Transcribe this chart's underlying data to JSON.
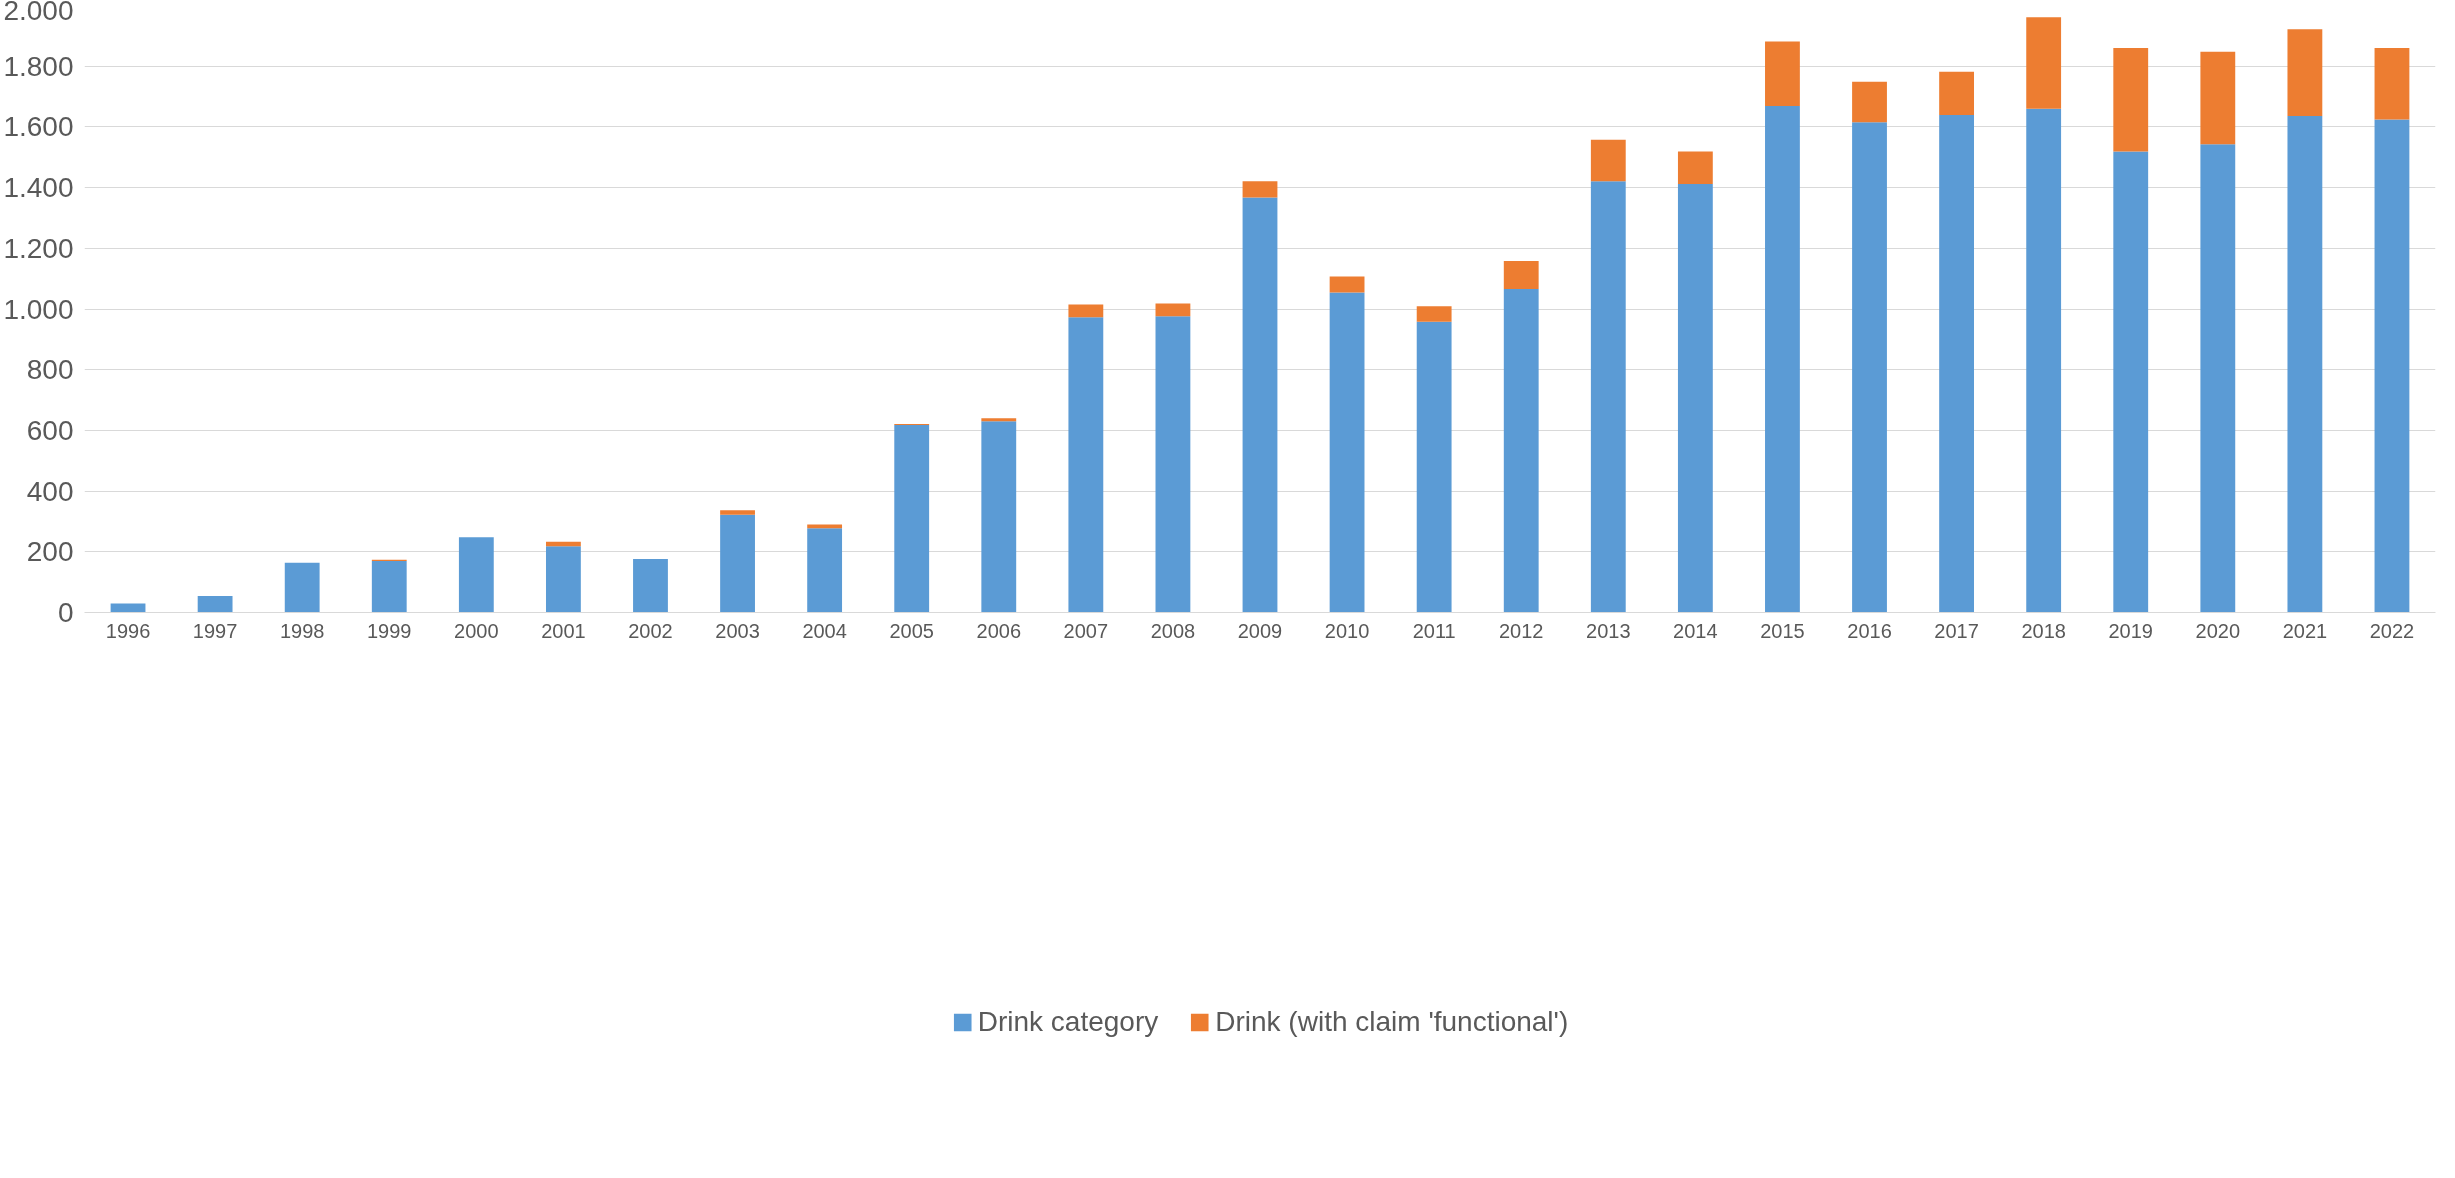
{
  "chart_data": {
    "type": "bar",
    "stacked": true,
    "categories": [
      "1996",
      "1997",
      "1998",
      "1999",
      "2000",
      "2001",
      "2002",
      "2003",
      "2004",
      "2005",
      "2006",
      "2007",
      "2008",
      "2009",
      "2010",
      "2011",
      "2012",
      "2013",
      "2014",
      "2015",
      "2016",
      "2017",
      "2018",
      "2019",
      "2020",
      "2021",
      "2022"
    ],
    "series": [
      {
        "name": "Drink category",
        "color": "#5b9bd5",
        "values": [
          30,
          54,
          164,
          170,
          248,
          218,
          176,
          322,
          278,
          618,
          630,
          973,
          976,
          1367,
          1054,
          958,
          1066,
          1421,
          1412,
          1669,
          1615,
          1639,
          1660,
          1519,
          1543,
          1636,
          1624
        ]
      },
      {
        "name": "Drink (with claim 'functional')",
        "color": "#ed7d31",
        "values": [
          null,
          null,
          null,
          4,
          null,
          15,
          null,
          15,
          12,
          3,
          10,
          42,
          42,
          54,
          53,
          51,
          92,
          137,
          107,
          212,
          134,
          143,
          301,
          341,
          305,
          286,
          236
        ]
      }
    ],
    "ylim": [
      0,
      2000
    ],
    "yticks": [
      0,
      200,
      400,
      600,
      800,
      {
        "value": 1000,
        "label": "1.000"
      },
      {
        "value": 1200,
        "label": "1.200"
      },
      {
        "value": 1400,
        "label": "1.400"
      },
      {
        "value": 1600,
        "label": "1.600"
      },
      {
        "value": 1800,
        "label": "1.800"
      },
      {
        "value": 2000,
        "label": "2.000"
      }
    ],
    "grid": "y",
    "legend": "bottom"
  }
}
